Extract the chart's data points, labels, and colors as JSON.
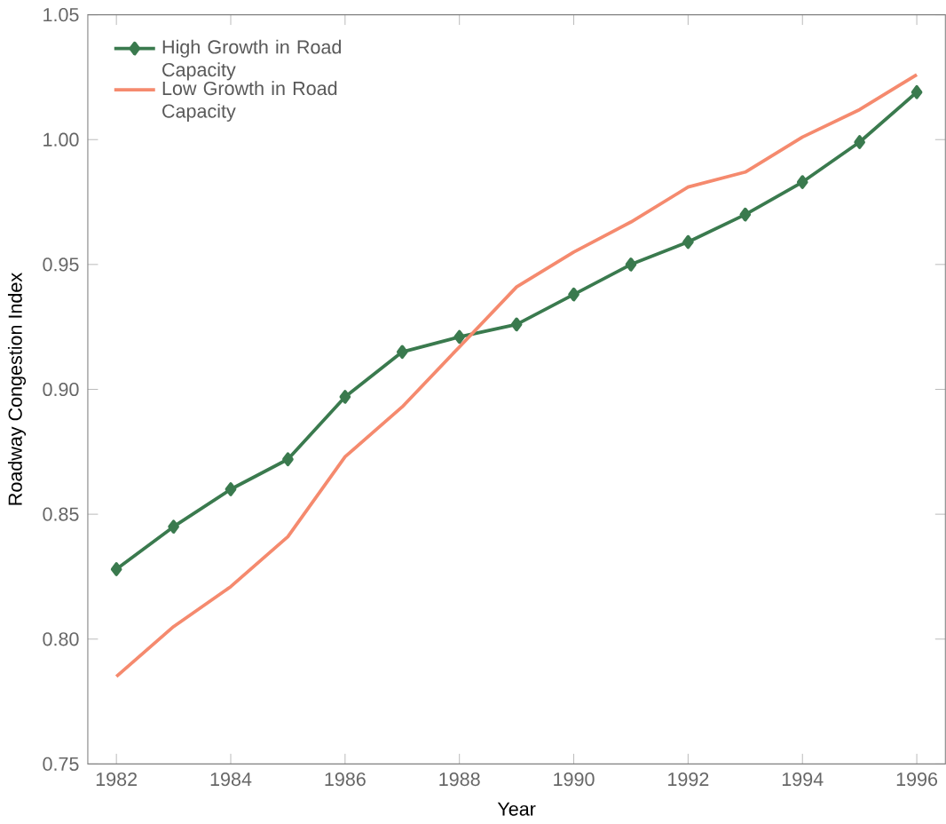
{
  "chart_data": {
    "type": "line",
    "xlabel": "Year",
    "ylabel": "Roadway Congestion Index",
    "x": [
      1982,
      1983,
      1984,
      1985,
      1986,
      1987,
      1988,
      1989,
      1990,
      1991,
      1992,
      1993,
      1994,
      1995,
      1996
    ],
    "series": [
      {
        "name": "High Growth in Road Capacity",
        "color": "#3a7a4e",
        "marker": "diamond",
        "values": [
          0.828,
          0.845,
          0.86,
          0.872,
          0.897,
          0.915,
          0.921,
          0.926,
          0.938,
          0.95,
          0.959,
          0.97,
          0.983,
          0.999,
          1.019
        ]
      },
      {
        "name": "Low Growth in Road Capacity",
        "color": "#f58a6e",
        "marker": "none",
        "values": [
          0.785,
          0.805,
          0.821,
          0.841,
          0.873,
          0.893,
          0.917,
          0.941,
          0.955,
          0.967,
          0.981,
          0.987,
          1.001,
          1.012,
          1.026
        ]
      }
    ],
    "xlim": [
      1981.5,
      1996.5
    ],
    "xticks": [
      1982,
      1984,
      1986,
      1988,
      1990,
      1992,
      1994,
      1996
    ],
    "ylim": [
      0.75,
      1.05
    ],
    "yticks": [
      {
        "value": 0.75,
        "label": "0.75"
      },
      {
        "value": 0.8,
        "label": "0.80"
      },
      {
        "value": 0.85,
        "label": "0.85"
      },
      {
        "value": 0.9,
        "label": "0.90"
      },
      {
        "value": 0.95,
        "label": "0.95"
      },
      {
        "value": 1.0,
        "label": "1.00"
      },
      {
        "value": 1.05,
        "label": "1.05"
      }
    ],
    "grid": false,
    "legend": "top left"
  }
}
